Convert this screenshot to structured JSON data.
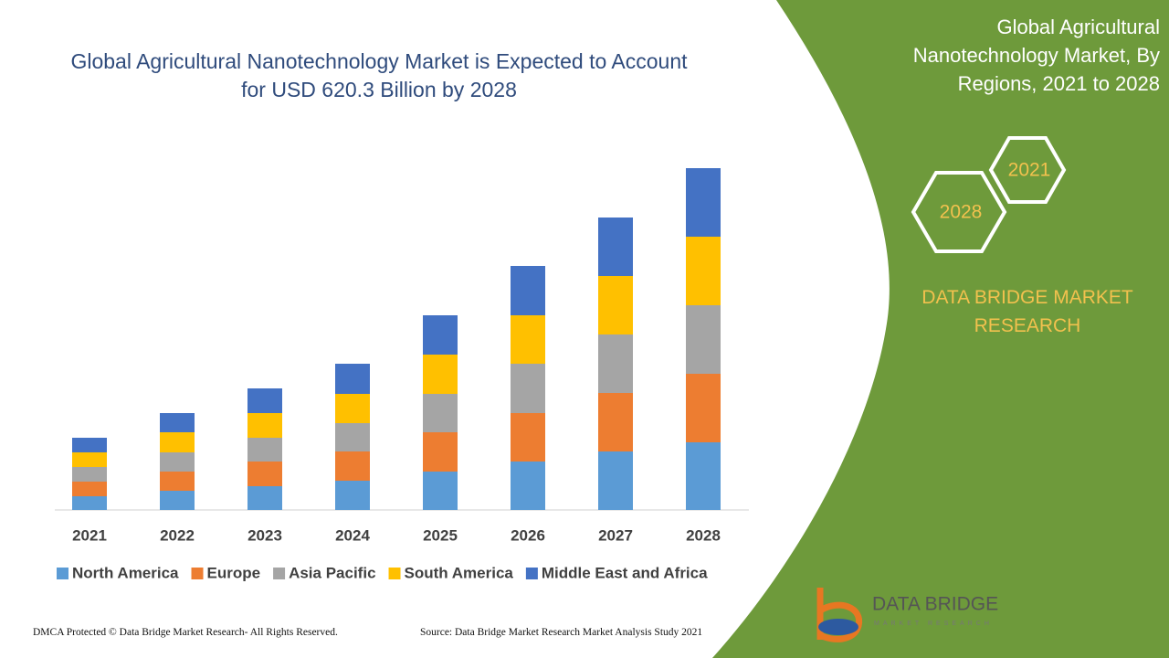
{
  "chart_data": {
    "type": "bar",
    "stacked": true,
    "title": "Global Agricultural Nanotechnology Market is Expected to Account for USD 620.3 Billion by 2028",
    "categories": [
      "2021",
      "2022",
      "2023",
      "2024",
      "2025",
      "2026",
      "2027",
      "2028"
    ],
    "series": [
      {
        "name": "North America",
        "color": "#5b9bd5",
        "values": [
          15,
          21,
          26,
          32,
          42,
          53,
          64,
          74
        ]
      },
      {
        "name": "Europe",
        "color": "#ed7d31",
        "values": [
          16,
          21,
          27,
          32,
          43,
          53,
          64,
          75
        ]
      },
      {
        "name": "Asia Pacific",
        "color": "#a5a5a5",
        "values": [
          16,
          21,
          26,
          31,
          42,
          54,
          64,
          75
        ]
      },
      {
        "name": "South America",
        "color": "#ffc000",
        "values": [
          16,
          22,
          27,
          32,
          43,
          53,
          64,
          75
        ]
      },
      {
        "name": "Middle East and Africa",
        "color": "#4472c4",
        "values": [
          16,
          21,
          27,
          33,
          43,
          54,
          64,
          75
        ]
      }
    ]
  },
  "side_panel": {
    "title": "Global Agricultural Nanotechnology Market, By Regions, 2021 to 2028",
    "hex_top": "2021",
    "hex_bottom": "2028",
    "brand": "DATA BRIDGE MARKET RESEARCH"
  },
  "logo": {
    "name": "DATA BRIDGE",
    "tagline": "MARKET RESEARCH"
  },
  "footer": {
    "left": "DMCA Protected © Data Bridge Market Research- All Rights Reserved.",
    "right": "Source: Data Bridge Market Research Market Analysis Study 2021"
  }
}
